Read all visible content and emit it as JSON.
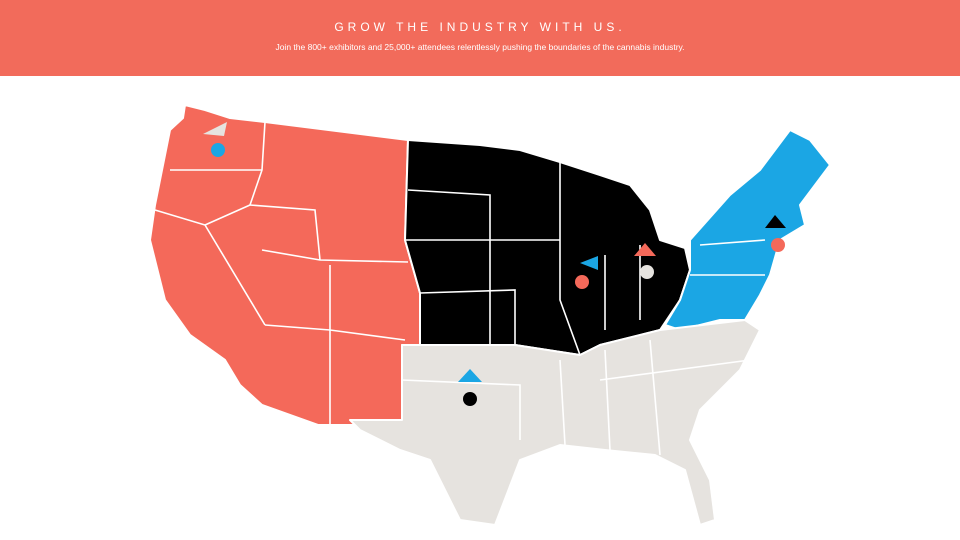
{
  "header": {
    "title": "GROW THE INDUSTRY WITH US.",
    "subtitle": "Join the 800+ exhibitors and 25,000+ attendees relentlessly pushing the boundaries of the cannabis industry."
  }
}
